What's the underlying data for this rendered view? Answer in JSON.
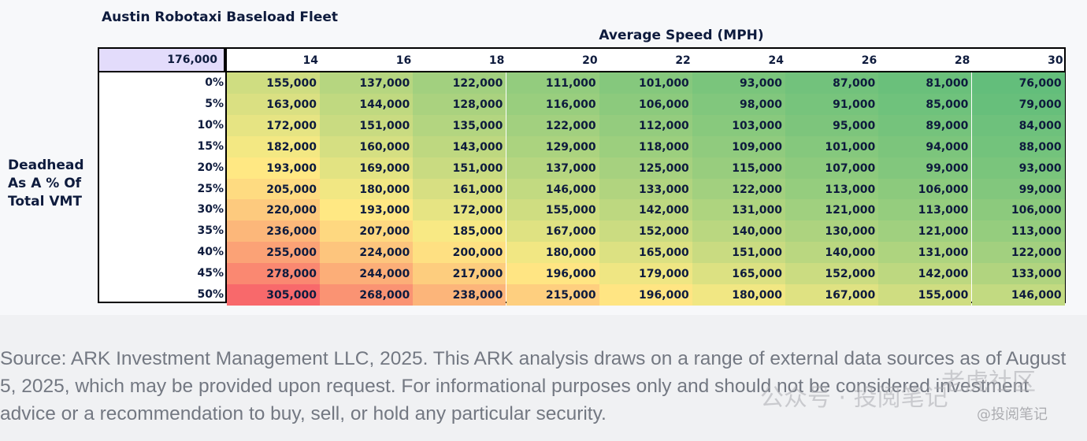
{
  "chart_data": {
    "type": "heatmap",
    "title": "Austin Robotaxi Baseload Fleet",
    "corner_value": "176,000",
    "xlabel": "Average Speed (MPH)",
    "ylabel": "Deadhead As A % Of Total VMT",
    "x": [
      "14",
      "16",
      "18",
      "20",
      "22",
      "24",
      "26",
      "28",
      "30"
    ],
    "y": [
      "0%",
      "5%",
      "10%",
      "15%",
      "20%",
      "25%",
      "30%",
      "35%",
      "40%",
      "45%",
      "50%"
    ],
    "values": [
      [
        155000,
        137000,
        122000,
        111000,
        101000,
        93000,
        87000,
        81000,
        76000
      ],
      [
        163000,
        144000,
        128000,
        116000,
        106000,
        98000,
        91000,
        85000,
        79000
      ],
      [
        172000,
        151000,
        135000,
        122000,
        112000,
        103000,
        95000,
        89000,
        84000
      ],
      [
        182000,
        160000,
        143000,
        129000,
        118000,
        109000,
        101000,
        94000,
        88000
      ],
      [
        193000,
        169000,
        151000,
        137000,
        125000,
        115000,
        107000,
        99000,
        93000
      ],
      [
        205000,
        180000,
        161000,
        146000,
        133000,
        122000,
        113000,
        106000,
        99000
      ],
      [
        220000,
        193000,
        172000,
        155000,
        142000,
        131000,
        121000,
        113000,
        106000
      ],
      [
        236000,
        207000,
        185000,
        167000,
        152000,
        140000,
        130000,
        121000,
        113000
      ],
      [
        255000,
        224000,
        200000,
        180000,
        165000,
        151000,
        140000,
        131000,
        122000
      ],
      [
        278000,
        244000,
        217000,
        196000,
        179000,
        165000,
        152000,
        142000,
        133000
      ],
      [
        305000,
        268000,
        238000,
        215000,
        196000,
        180000,
        167000,
        155000,
        146000
      ]
    ],
    "color_scale": {
      "low": "#63be7b",
      "mid": "#ffeb84",
      "high": "#f8696b"
    }
  },
  "footer": {
    "source": "Source: ARK Investment Management LLC, 2025. This ARK analysis draws on a range of external data sources as of August 5, 2025, which may be provided upon request. For informational purposes only and should not be considered investment advice or a recommendation to buy, sell, or hold any particular security."
  },
  "watermark": {
    "line1": "公众号 · 投阅笔记",
    "line2": "老虎社区",
    "line3": "@投阅笔记"
  }
}
